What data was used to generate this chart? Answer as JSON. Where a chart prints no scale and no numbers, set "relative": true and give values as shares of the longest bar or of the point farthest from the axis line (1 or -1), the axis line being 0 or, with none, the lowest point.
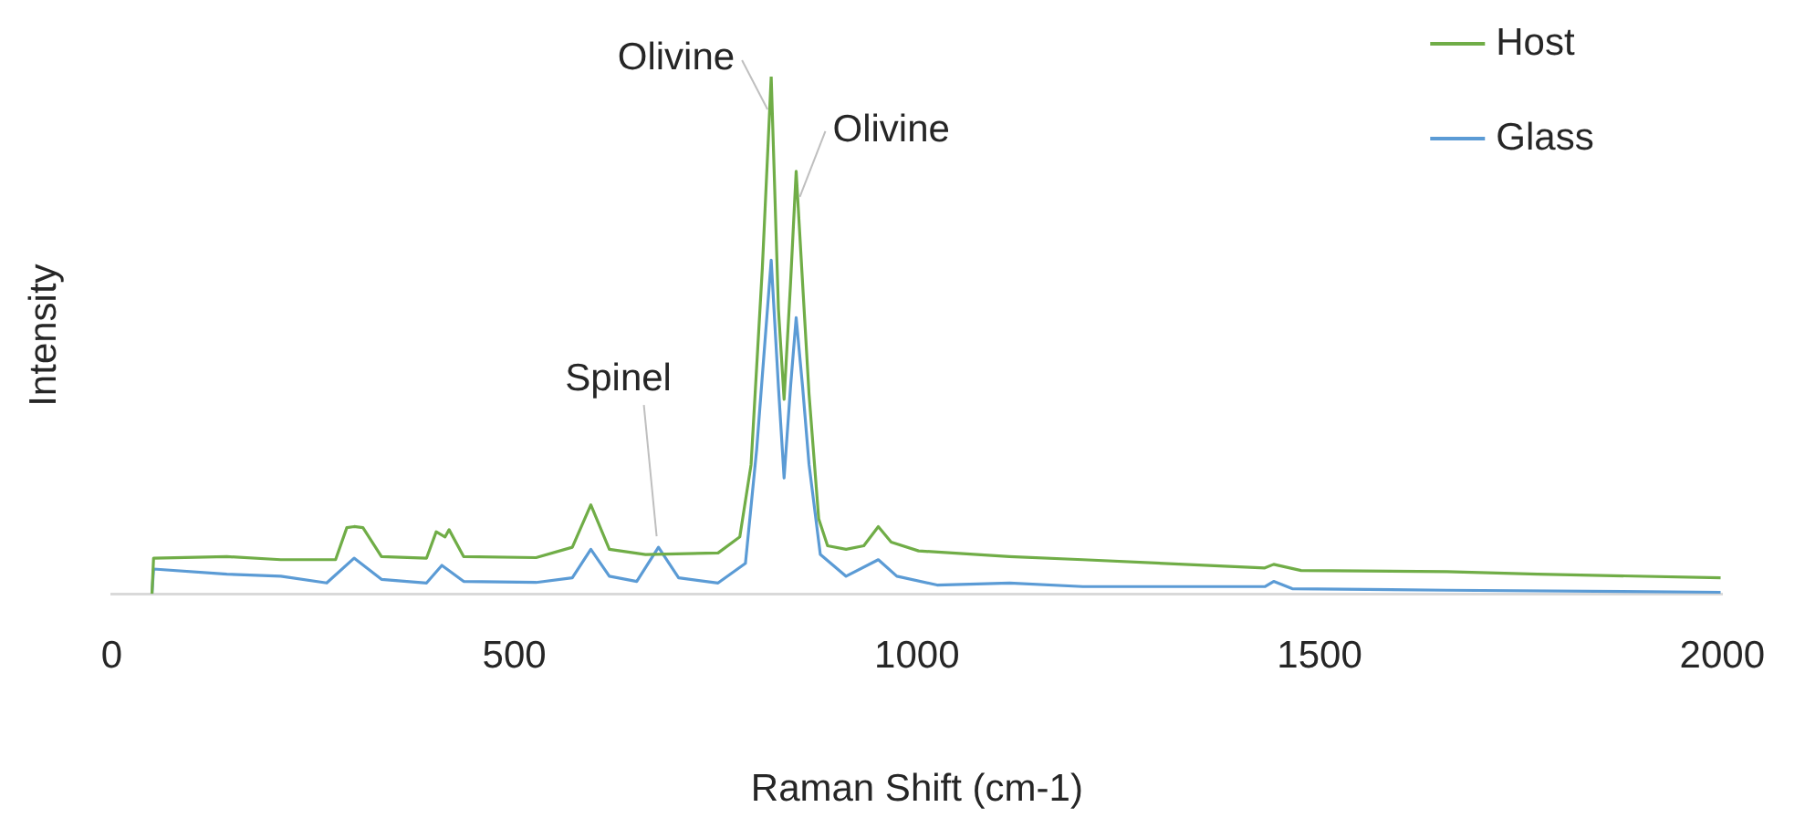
{
  "chart_data": {
    "type": "line",
    "xlabel": "Raman Shift (cm-1)",
    "ylabel": "Intensity",
    "relative": true,
    "xlim": [
      0,
      2000
    ],
    "xticks": [
      0,
      500,
      1000,
      1500,
      2000
    ],
    "legend": "top right",
    "grid": false,
    "marker": "none",
    "series": [
      {
        "name": "Host",
        "color": "#70ad47",
        "x": [
          50,
          52,
          143,
          210,
          278,
          292,
          301,
          312,
          335,
          391,
          403,
          414,
          419,
          437,
          527,
          572,
          595,
          618,
          663,
          753,
          780,
          794,
          808,
          819,
          828,
          835,
          843,
          850,
          858,
          866,
          878,
          889,
          912,
          934,
          952,
          968,
          1002,
          1115,
          1206,
          1432,
          1443,
          1477,
          1658,
          1771,
          1998
        ],
        "values": [
          0,
          0.069,
          0.072,
          0.066,
          0.066,
          0.128,
          0.13,
          0.128,
          0.072,
          0.069,
          0.12,
          0.11,
          0.124,
          0.072,
          0.07,
          0.09,
          0.172,
          0.086,
          0.076,
          0.079,
          0.11,
          0.25,
          0.63,
          1,
          0.55,
          0.376,
          0.6,
          0.817,
          0.6,
          0.386,
          0.145,
          0.093,
          0.086,
          0.093,
          0.13,
          0.1,
          0.083,
          0.072,
          0.066,
          0.05,
          0.057,
          0.045,
          0.043,
          0.038,
          0.031
        ]
      },
      {
        "name": "Glass",
        "color": "#5b9bd5",
        "x": [
          50,
          52,
          143,
          210,
          267,
          301,
          335,
          391,
          410,
          437,
          527,
          572,
          595,
          618,
          652,
          679,
          704,
          753,
          787,
          801,
          819,
          828,
          835,
          843,
          850,
          858,
          866,
          880,
          912,
          952,
          975,
          1025,
          1115,
          1206,
          1432,
          1443,
          1466,
          1658,
          1998
        ],
        "values": [
          0,
          0.048,
          0.038,
          0.034,
          0.021,
          0.069,
          0.028,
          0.021,
          0.055,
          0.024,
          0.022,
          0.031,
          0.086,
          0.034,
          0.024,
          0.09,
          0.031,
          0.021,
          0.059,
          0.28,
          0.645,
          0.4,
          0.224,
          0.4,
          0.534,
          0.4,
          0.25,
          0.076,
          0.034,
          0.066,
          0.034,
          0.017,
          0.021,
          0.014,
          0.014,
          0.024,
          0.01,
          0.007,
          0.003
        ]
      }
    ],
    "annotations": [
      {
        "text": "Olivine",
        "x": 819,
        "y": 1
      },
      {
        "text": "Olivine",
        "x": 850,
        "y": 0.817
      },
      {
        "text": "Spinel",
        "x": 679,
        "y": 0.09
      }
    ]
  }
}
